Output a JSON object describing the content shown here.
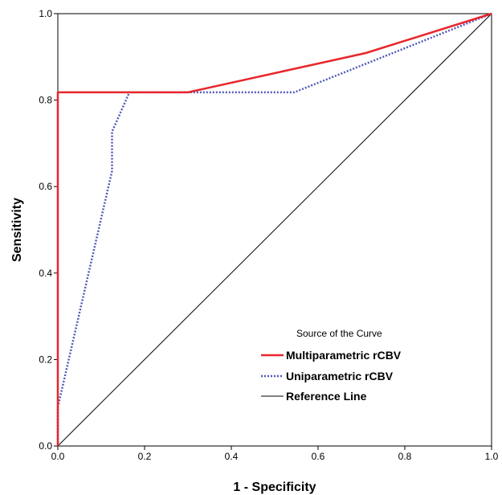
{
  "chart_data": {
    "type": "line",
    "xlabel": "1 - Specificity",
    "ylabel": "Sensitivity",
    "xlim": [
      0,
      1
    ],
    "ylim": [
      0,
      1
    ],
    "x_ticks": [
      "0.0",
      "0.2",
      "0.4",
      "0.6",
      "0.8",
      "1.0"
    ],
    "y_ticks": [
      "0.0",
      "0.2",
      "0.4",
      "0.6",
      "0.8",
      "1.0"
    ],
    "grid": false,
    "legend": {
      "title": "Source of the Curve",
      "placement": "bottom-right"
    },
    "series": [
      {
        "name": "Multiparametric rCBV",
        "color": "#e8262b",
        "style": "solid",
        "x": [
          0,
          0,
          0,
          0.3,
          0.71,
          1.0
        ],
        "y": [
          0,
          0.09,
          0.818,
          0.818,
          0.909,
          1.0
        ]
      },
      {
        "name": "Uniparametric rCBV",
        "color": "#5058b8",
        "style": "dotted",
        "x": [
          0,
          0,
          0.125,
          0.125,
          0.165,
          0.545,
          1.0
        ],
        "y": [
          0,
          0.09,
          0.636,
          0.727,
          0.818,
          0.818,
          1.0
        ]
      },
      {
        "name": "Reference Line",
        "color": "#000000",
        "style": "solid",
        "x": [
          0,
          1
        ],
        "y": [
          0,
          1
        ]
      }
    ]
  }
}
